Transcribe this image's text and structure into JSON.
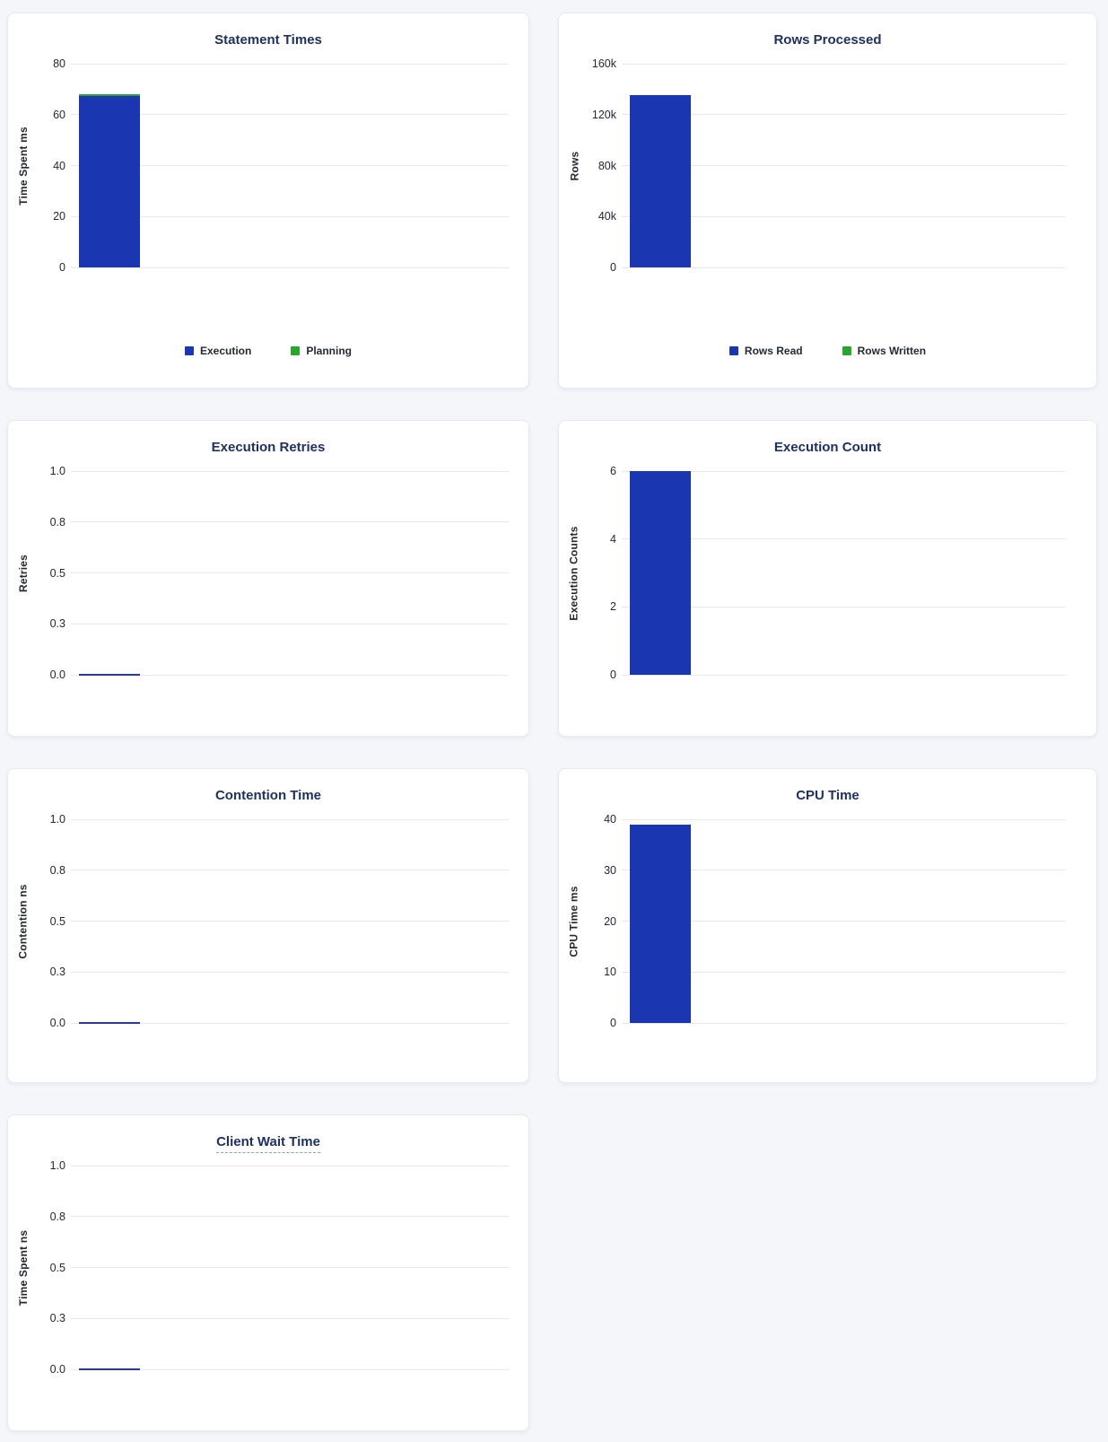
{
  "palette": {
    "bar_blue": "#1b36b1",
    "bar_green": "#2aa62f",
    "zero_line_blue": "#2436c0",
    "title_navy": "#1f3160",
    "page_background": "#f4f6fa"
  },
  "chart_data": [
    {
      "type": "bar",
      "title": "Statement Times",
      "ylabel": "Time Spent ms",
      "yticks": [
        "80",
        "60",
        "40",
        "20",
        "0"
      ],
      "ymax": 80,
      "ylim": [
        0,
        80
      ],
      "grid": true,
      "stacked": true,
      "legend_position": "bottom",
      "series": [
        {
          "name": "Execution",
          "color": "bar_blue",
          "value": 67.2
        },
        {
          "name": "Planning",
          "color": "bar_green",
          "value": 0.8
        }
      ],
      "legend": [
        "Execution",
        "Planning"
      ]
    },
    {
      "type": "bar",
      "title": "Rows Processed",
      "ylabel": "Rows",
      "yticks": [
        "160k",
        "120k",
        "80k",
        "40k",
        "0"
      ],
      "ymax": 160000,
      "ylim": [
        0,
        160000
      ],
      "grid": true,
      "stacked": true,
      "legend_position": "bottom",
      "series": [
        {
          "name": "Rows Read",
          "color": "bar_blue",
          "value": 135000
        },
        {
          "name": "Rows Written",
          "color": "bar_green",
          "value": 0
        }
      ],
      "legend": [
        "Rows Read",
        "Rows Written"
      ]
    },
    {
      "type": "bar",
      "title": "Execution Retries",
      "ylabel": "Retries",
      "yticks": [
        "1.0",
        "0.8",
        "0.5",
        "0.3",
        "0.0"
      ],
      "ymax": 1,
      "ylim": [
        0,
        1
      ],
      "grid": true,
      "series": [
        {
          "name": "Retries",
          "color": "bar_blue",
          "value": 0
        }
      ]
    },
    {
      "type": "bar",
      "title": "Execution Count",
      "ylabel": "Execution Counts",
      "yticks": [
        "6",
        "4",
        "2",
        "0"
      ],
      "ymax": 6,
      "ylim": [
        0,
        6
      ],
      "grid": true,
      "series": [
        {
          "name": "Execution Count",
          "color": "bar_blue",
          "value": 6
        }
      ]
    },
    {
      "type": "bar",
      "title": "Contention Time",
      "ylabel": "Contention ns",
      "yticks": [
        "1.0",
        "0.8",
        "0.5",
        "0.3",
        "0.0"
      ],
      "ymax": 1,
      "ylim": [
        0,
        1
      ],
      "grid": true,
      "series": [
        {
          "name": "Contention",
          "color": "bar_blue",
          "value": 0
        }
      ]
    },
    {
      "type": "bar",
      "title": "CPU Time",
      "ylabel": "CPU Time ms",
      "yticks": [
        "40",
        "30",
        "20",
        "10",
        "0"
      ],
      "ymax": 40,
      "ylim": [
        0,
        40
      ],
      "grid": true,
      "series": [
        {
          "name": "CPU Time",
          "color": "bar_blue",
          "value": 39
        }
      ]
    },
    {
      "type": "bar",
      "title": "Client Wait Time",
      "ylabel": "Time Spent ns",
      "yticks": [
        "1.0",
        "0.8",
        "0.5",
        "0.3",
        "0.0"
      ],
      "ymax": 1,
      "ylim": [
        0,
        1
      ],
      "grid": true,
      "title_underline": "dashed",
      "series": [
        {
          "name": "Client Wait",
          "color": "bar_blue",
          "value": 0
        }
      ]
    }
  ]
}
